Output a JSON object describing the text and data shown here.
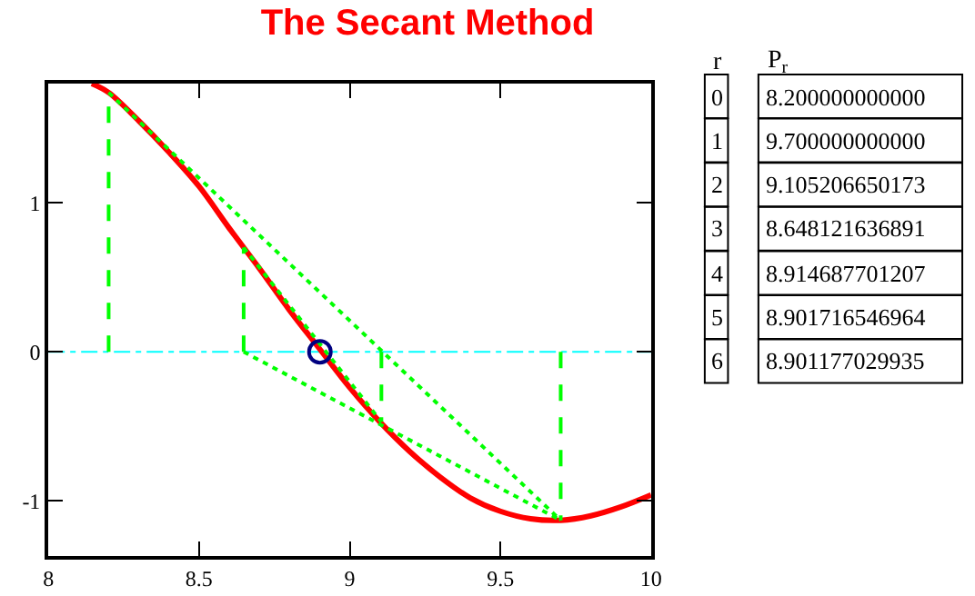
{
  "chart_data": {
    "type": "line",
    "title": "The Secant Method",
    "xlim": [
      8,
      10
    ],
    "ylim": [
      -1.37,
      1.8
    ],
    "xticks": [
      8,
      8.5,
      9,
      9.5,
      10
    ],
    "yticks": [
      -1,
      0,
      1
    ],
    "grid": false,
    "series": [
      {
        "color": "#ff0000",
        "line_style": "solid",
        "marker": "none",
        "x": [
          8.144,
          8.2,
          8.3,
          8.4,
          8.5,
          8.6,
          8.7,
          8.8,
          8.9,
          9.0,
          9.1,
          9.2,
          9.3,
          9.4,
          9.5,
          9.6,
          9.7,
          9.8,
          9.9,
          10.0
        ],
        "values": [
          1.8,
          1.74,
          1.55,
          1.34,
          1.11,
          0.83,
          0.56,
          0.28,
          0.02,
          -0.24,
          -0.47,
          -0.67,
          -0.84,
          -0.98,
          -1.07,
          -1.12,
          -1.13,
          -1.1,
          -1.04,
          -0.96
        ]
      },
      {
        "color": "#00ff00",
        "line_style": "dotted",
        "marker": "none",
        "x": [
          8.2,
          9.7
        ],
        "values": [
          1.74,
          -1.13
        ]
      },
      {
        "color": "#00ff00",
        "line_style": "dotted",
        "marker": "none",
        "x": [
          8.648,
          9.7
        ],
        "values": [
          0,
          -1.13
        ]
      },
      {
        "color": "#00ff00",
        "line_style": "dotted",
        "marker": "none",
        "x": [
          8.648,
          9.105
        ],
        "values": [
          0.7,
          -0.47
        ]
      },
      {
        "color": "#00ff00",
        "line_style": "dashed",
        "marker": "none",
        "x": [
          8.2,
          8.2
        ],
        "values": [
          0,
          1.74
        ]
      },
      {
        "color": "#00ff00",
        "line_style": "dashed",
        "marker": "none",
        "x": [
          9.7,
          9.7
        ],
        "values": [
          0,
          -1.13
        ]
      },
      {
        "color": "#00ff00",
        "line_style": "dashed",
        "marker": "none",
        "x": [
          9.105,
          9.105
        ],
        "values": [
          0,
          -0.47
        ]
      },
      {
        "color": "#00ff00",
        "line_style": "dashed",
        "marker": "none",
        "x": [
          8.648,
          8.648
        ],
        "values": [
          0,
          0.7
        ]
      },
      {
        "type": "scatter",
        "color": "#000080",
        "marker": "circle",
        "x": [
          8.901
        ],
        "values": [
          0
        ]
      }
    ],
    "ref_lines": [
      {
        "axis": "y",
        "value": 0,
        "color": "#00ffff",
        "line_style": "dashed"
      }
    ],
    "annotations": [
      "r",
      "P$_{r}$",
      "0",
      "8.200000000000",
      "1",
      "9.700000000000",
      "2",
      "9.105206650173",
      "3",
      "8.648121636891",
      "4",
      "8.914687701207",
      "5",
      "8.901716546964",
      "6",
      "8.901177029935"
    ]
  }
}
